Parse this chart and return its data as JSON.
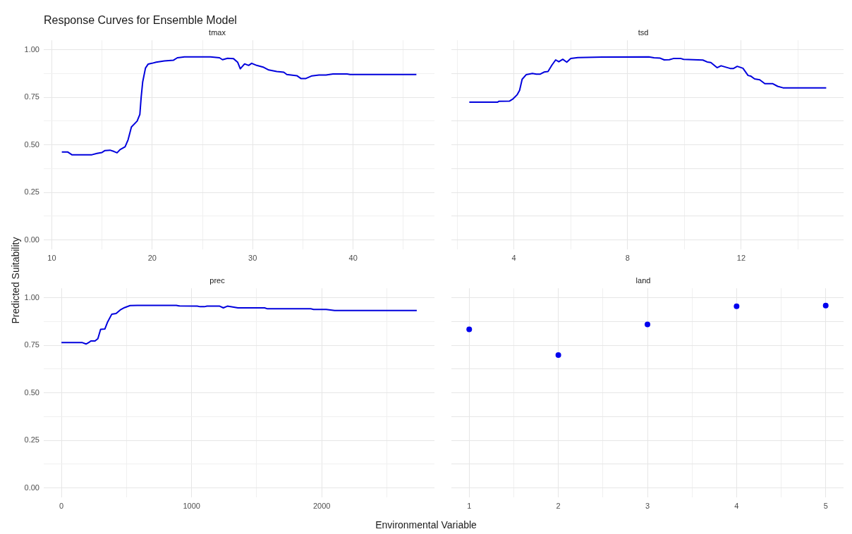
{
  "chart_data": [
    {
      "type": "line",
      "title": "Response Curves for Ensemble Model",
      "subtitle": "tmax",
      "xlabel": "Environmental Variable",
      "ylabel": "Predicted Suitability",
      "grid": true,
      "xlim": [
        9.2,
        48.1
      ],
      "xticks": [
        10,
        {
          "value": 15,
          "label": null
        },
        20,
        {
          "value": 25,
          "label": null
        },
        30,
        {
          "value": 35,
          "label": null
        },
        40,
        {
          "value": 45,
          "label": null
        }
      ],
      "ylim": [
        -0.05,
        1.05
      ],
      "yticks": [
        {
          "value": 0,
          "label": "0.00"
        },
        {
          "value": 0.125,
          "label": null
        },
        {
          "value": 0.25,
          "label": "0.25"
        },
        {
          "value": 0.375,
          "label": null
        },
        {
          "value": 0.5,
          "label": "0.50"
        },
        {
          "value": 0.625,
          "label": null
        },
        {
          "value": 0.75,
          "label": "0.75"
        },
        {
          "value": 0.875,
          "label": null
        },
        {
          "value": 1,
          "label": "1.00"
        }
      ],
      "series": [
        {
          "color": "#0000dd",
          "x": [
            11.0,
            11.6,
            12.0,
            14.0,
            14.5,
            15.0,
            15.3,
            15.8,
            16.2,
            16.5,
            16.8,
            17.3,
            17.6,
            17.93,
            18.5,
            18.77,
            18.9,
            19.05,
            19.33,
            19.6,
            19.97,
            20.4,
            21.2,
            22.1,
            22.5,
            23.2,
            25.8,
            26.7,
            27.0,
            27.5,
            28.1,
            28.5,
            28.77,
            29.2,
            29.6,
            29.9,
            30.4,
            31.1,
            31.6,
            32.4,
            33.1,
            33.4,
            34.4,
            34.8,
            35.3,
            35.9,
            36.6,
            37.3,
            38.0,
            39.4,
            39.7,
            46.3
          ],
          "values": [
            0.462,
            0.462,
            0.448,
            0.448,
            0.455,
            0.46,
            0.47,
            0.472,
            0.465,
            0.458,
            0.475,
            0.49,
            0.527,
            0.594,
            0.625,
            0.66,
            0.75,
            0.83,
            0.904,
            0.925,
            0.929,
            0.935,
            0.941,
            0.945,
            0.958,
            0.963,
            0.963,
            0.958,
            0.948,
            0.955,
            0.953,
            0.935,
            0.9,
            0.926,
            0.918,
            0.929,
            0.918,
            0.908,
            0.894,
            0.886,
            0.882,
            0.87,
            0.864,
            0.849,
            0.849,
            0.863,
            0.867,
            0.867,
            0.873,
            0.873,
            0.87,
            0.87
          ]
        }
      ]
    },
    {
      "type": "line",
      "subtitle": "tsd",
      "grid": true,
      "tick_labels": "x",
      "xlim": [
        1.8,
        15.6
      ],
      "xticks": [
        {
          "value": 2,
          "label": null
        },
        4,
        {
          "value": 6,
          "label": null
        },
        8,
        {
          "value": 10,
          "label": null
        },
        12,
        {
          "value": 14,
          "label": null
        }
      ],
      "ylim": [
        -0.05,
        1.05
      ],
      "yticks": [
        0,
        0.125,
        0.25,
        0.375,
        0.5,
        0.625,
        0.75,
        0.875,
        1
      ],
      "series": [
        {
          "color": "#0000dd",
          "x": [
            2.43,
            3.43,
            3.47,
            3.84,
            3.97,
            4.11,
            4.2,
            4.29,
            4.43,
            4.65,
            4.79,
            4.93,
            5.06,
            5.2,
            5.34,
            5.47,
            5.58,
            5.72,
            5.86,
            6.0,
            6.25,
            7.11,
            8.75,
            8.93,
            9.15,
            9.29,
            9.47,
            9.61,
            9.88,
            9.97,
            10.65,
            10.8,
            10.93,
            11.15,
            11.29,
            11.61,
            11.73,
            11.86,
            12.06,
            12.24,
            12.33,
            12.47,
            12.65,
            12.83,
            13.1,
            13.28,
            13.47,
            14.99
          ],
          "values": [
            0.725,
            0.725,
            0.729,
            0.73,
            0.742,
            0.763,
            0.787,
            0.845,
            0.869,
            0.876,
            0.872,
            0.872,
            0.883,
            0.886,
            0.92,
            0.947,
            0.937,
            0.95,
            0.935,
            0.954,
            0.959,
            0.962,
            0.963,
            0.958,
            0.956,
            0.947,
            0.948,
            0.954,
            0.954,
            0.95,
            0.946,
            0.936,
            0.933,
            0.906,
            0.916,
            0.902,
            0.902,
            0.913,
            0.903,
            0.865,
            0.862,
            0.847,
            0.842,
            0.822,
            0.822,
            0.808,
            0.8,
            0.8
          ]
        }
      ]
    },
    {
      "type": "line",
      "subtitle": "prec",
      "grid": true,
      "xlim": [
        -136,
        2866
      ],
      "xticks": [
        0,
        {
          "value": 500,
          "label": null
        },
        1000,
        {
          "value": 1500,
          "label": null
        },
        2000,
        {
          "value": 2500,
          "label": null
        }
      ],
      "ylim": [
        -0.05,
        1.05
      ],
      "yticks": [
        {
          "value": 0,
          "label": "0.00"
        },
        {
          "value": 0.125,
          "label": null
        },
        {
          "value": 0.25,
          "label": "0.25"
        },
        {
          "value": 0.375,
          "label": null
        },
        {
          "value": 0.5,
          "label": "0.50"
        },
        {
          "value": 0.625,
          "label": null
        },
        {
          "value": 0.75,
          "label": "0.75"
        },
        {
          "value": 0.875,
          "label": null
        },
        {
          "value": 1,
          "label": "1.00"
        }
      ],
      "series": [
        {
          "color": "#0000dd",
          "x": [
            0,
            161,
            189,
            215,
            226,
            258,
            280,
            301,
            334,
            355,
            387,
            420,
            452,
            484,
            527,
            581,
            883,
            904,
            1044,
            1066,
            1098,
            1119,
            1216,
            1244,
            1275,
            1324,
            1356,
            1561,
            1583,
            1916,
            1937,
            2034,
            2099,
            2730
          ],
          "values": [
            0.764,
            0.764,
            0.757,
            0.767,
            0.773,
            0.773,
            0.785,
            0.834,
            0.836,
            0.873,
            0.914,
            0.917,
            0.936,
            0.948,
            0.959,
            0.96,
            0.96,
            0.957,
            0.956,
            0.953,
            0.953,
            0.956,
            0.956,
            0.947,
            0.956,
            0.951,
            0.947,
            0.947,
            0.942,
            0.942,
            0.939,
            0.939,
            0.933,
            0.933
          ]
        }
      ]
    },
    {
      "type": "scatter",
      "subtitle": "land",
      "grid": true,
      "tick_labels": "x",
      "marker": "circle",
      "xlim": [
        0.8,
        5.2
      ],
      "xticks": [
        1,
        {
          "value": 1.5,
          "label": null
        },
        2,
        {
          "value": 2.5,
          "label": null
        },
        3,
        {
          "value": 3.5,
          "label": null
        },
        4,
        {
          "value": 4.5,
          "label": null
        },
        5
      ],
      "ylim": [
        -0.05,
        1.05
      ],
      "yticks": [
        0,
        0.125,
        0.25,
        0.375,
        0.5,
        0.625,
        0.75,
        0.875,
        1
      ],
      "series": [
        {
          "color": "#0000ee",
          "x": [
            1,
            2,
            3,
            4,
            5
          ],
          "values": [
            0.834,
            0.699,
            0.86,
            0.955,
            0.959
          ]
        }
      ]
    }
  ]
}
